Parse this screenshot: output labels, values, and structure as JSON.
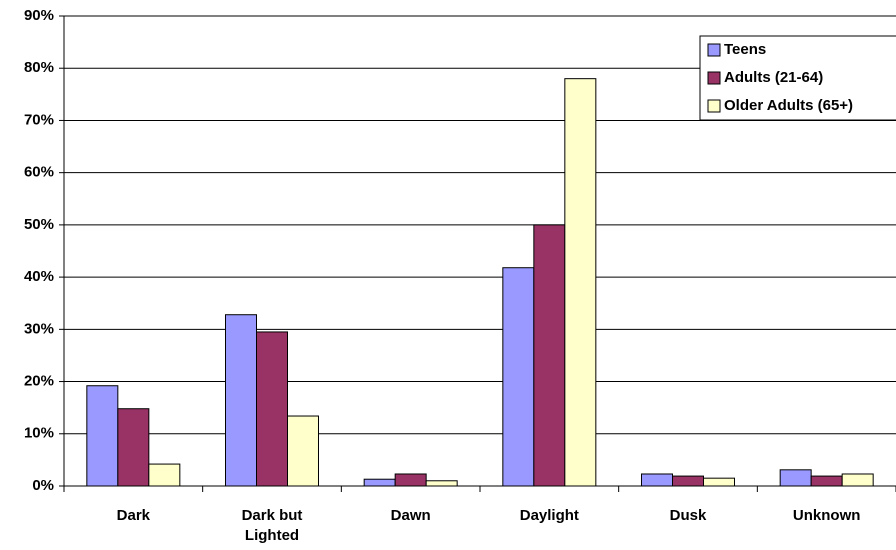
{
  "chart_data": {
    "type": "bar",
    "categories": [
      "Dark",
      "Dark but Lighted",
      "Dawn",
      "Daylight",
      "Dusk",
      "Unknown"
    ],
    "series": [
      {
        "name": "Teens",
        "color": "#9999ff",
        "values": [
          19.2,
          32.8,
          1.3,
          41.8,
          2.3,
          3.1
        ]
      },
      {
        "name": "Adults (21-64)",
        "color": "#993366",
        "values": [
          14.8,
          29.5,
          2.3,
          50,
          1.9,
          1.9
        ]
      },
      {
        "name": "Older Adults (65+)",
        "color": "#ffffcc",
        "values": [
          4.2,
          13.4,
          1.0,
          78,
          1.5,
          2.3
        ]
      }
    ],
    "ylim": [
      0,
      90
    ],
    "yticks": [
      {
        "value": 0,
        "label": "0%"
      },
      {
        "value": 10,
        "label": "10%"
      },
      {
        "value": 20,
        "label": "20%"
      },
      {
        "value": 30,
        "label": "30%"
      },
      {
        "value": 40,
        "label": "40%"
      },
      {
        "value": 50,
        "label": "50%"
      },
      {
        "value": 60,
        "label": "60%"
      },
      {
        "value": 70,
        "label": "70%"
      },
      {
        "value": 80,
        "label": "80%"
      },
      {
        "value": 90,
        "label": "90%"
      }
    ],
    "grid": true,
    "legend": "upper right"
  }
}
